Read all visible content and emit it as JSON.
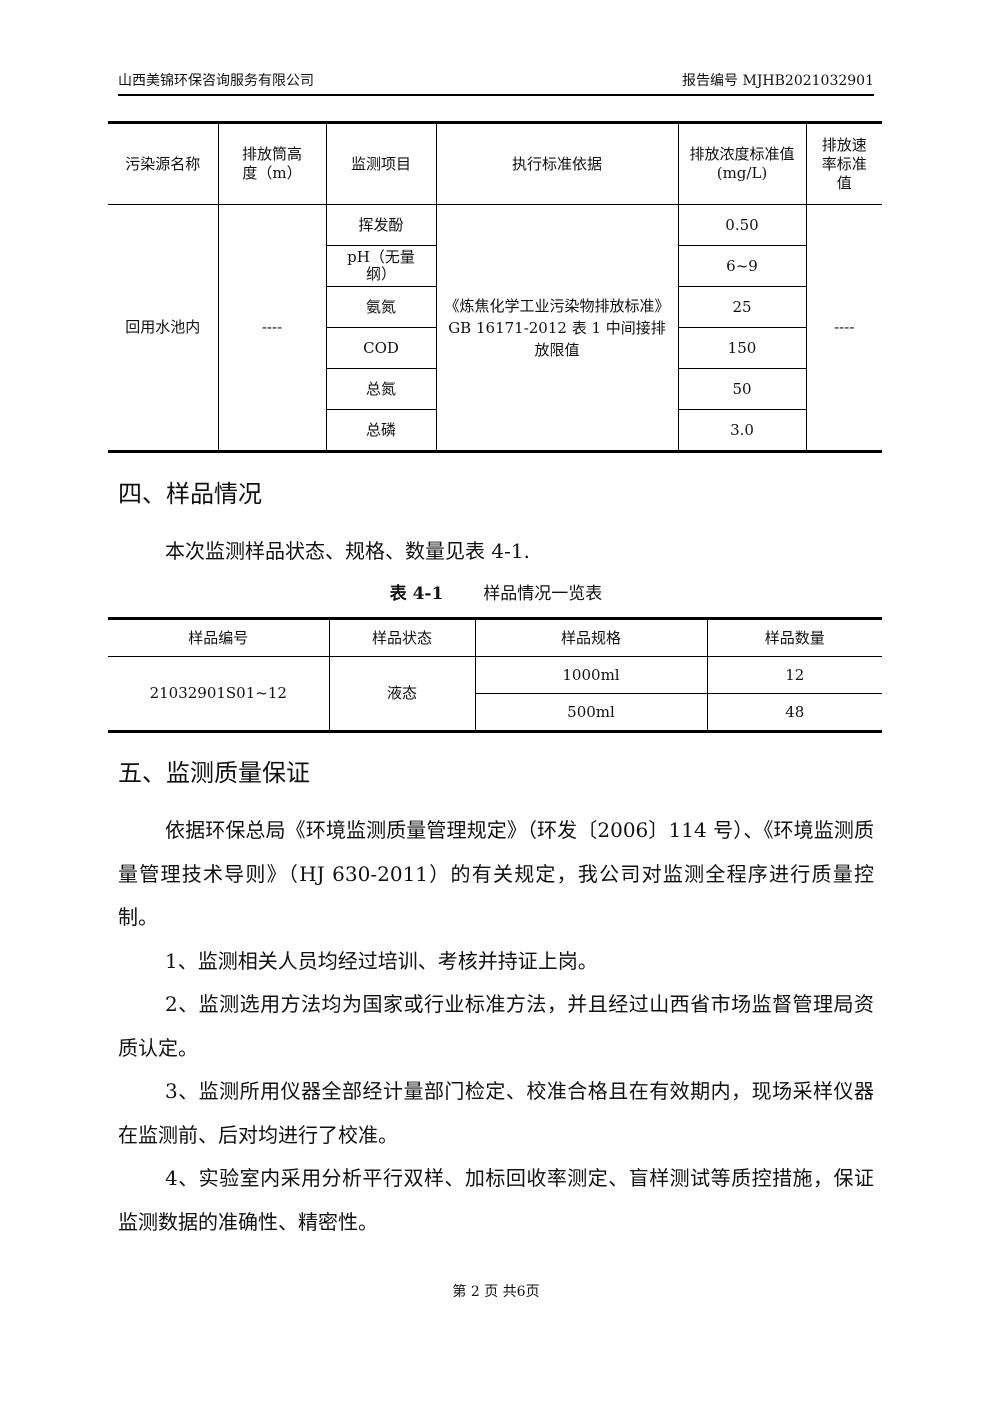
{
  "header": {
    "company": "山西美锦环保咨询服务有限公司",
    "report_no": "报告编号 MJHB2021032901"
  },
  "table1": {
    "headers": [
      "污染源名称",
      "排放筒高度（m）",
      "监测项目",
      "执行标准依据",
      "排放浓度标准值(mg/L)",
      "排放速率标准值"
    ],
    "source": "回用水池内",
    "height": "----",
    "standard": "《炼焦化学工业污染物排放标准》GB 16171-2012 表 1 中间接排放限值",
    "rate": "----",
    "rows": [
      {
        "item": "挥发酚",
        "value": "0.50"
      },
      {
        "item": "pH（无量纲）",
        "value": "6~9"
      },
      {
        "item": "氨氮",
        "value": "25"
      },
      {
        "item": "COD",
        "value": "150"
      },
      {
        "item": "总氮",
        "value": "50"
      },
      {
        "item": "总磷",
        "value": "3.0"
      }
    ]
  },
  "section4": {
    "title": "四、样品情况",
    "intro": "本次监测样品状态、规格、数量见表 4-1.",
    "caption_no": "表 4-1",
    "caption": "样品情况一览表"
  },
  "table2": {
    "headers": [
      "样品编号",
      "样品状态",
      "样品规格",
      "样品数量"
    ],
    "sample_id": "21032901S01~12",
    "state": "液态",
    "rows": [
      {
        "spec": "1000ml",
        "qty": "12"
      },
      {
        "spec": "500ml",
        "qty": "48"
      }
    ]
  },
  "section5": {
    "title": "五、监测质量保证",
    "paragraphs": [
      "依据环保总局《环境监测质量管理规定》（环发〔2006〕114 号）、《环境监测质量管理技术导则》（HJ 630-2011）的有关规定，我公司对监测全程序进行质量控制。",
      "1、监测相关人员均经过培训、考核并持证上岗。",
      "2、监测选用方法均为国家或行业标准方法，并且经过山西省市场监督管理局资质认定。",
      "3、监测所用仪器全部经计量部门检定、校准合格且在有效期内，现场采样仪器在监测前、后对均进行了校准。",
      "4、实验室内采用分析平行双样、加标回收率测定、盲样测试等质控措施，保证监测数据的准确性、精密性。"
    ]
  },
  "footer": {
    "page": "第 2 页 共6页"
  }
}
